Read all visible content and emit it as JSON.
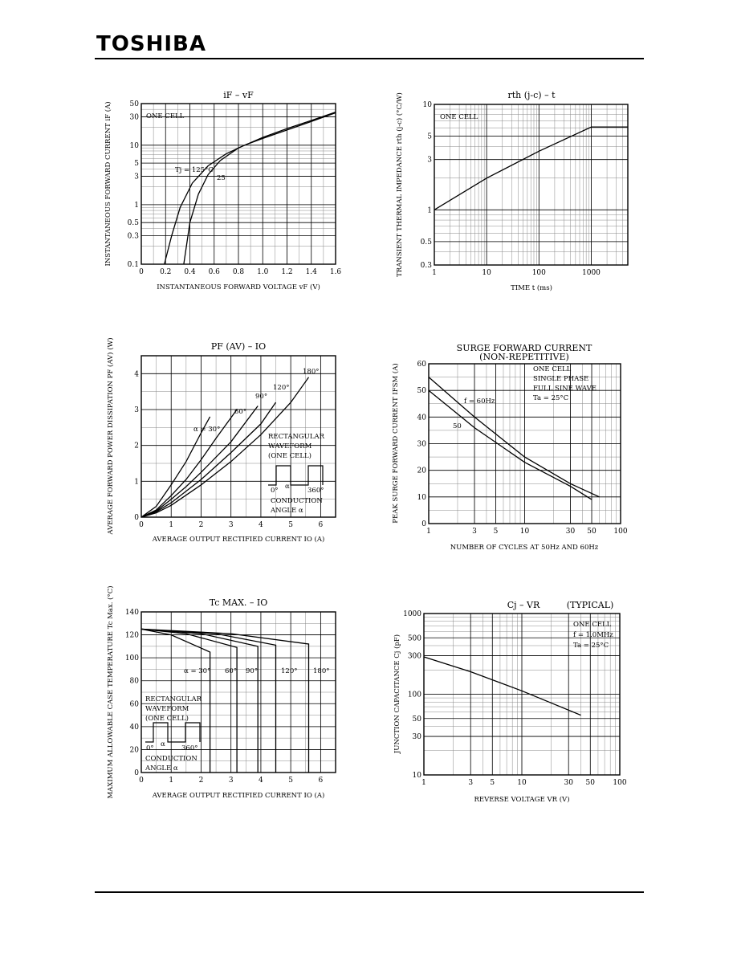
{
  "header": {
    "brand": "TOSHIBA"
  },
  "chart_data": [
    {
      "type": "line",
      "title": "iF – vF",
      "xlabel": "INSTANTANEOUS FORWARD VOLTAGE vF (V)",
      "ylabel": "INSTANTANEOUS FORWARD CURRENT iF (A)",
      "xlim": [
        0,
        1.6
      ],
      "ylim": [
        0.1,
        50
      ],
      "yscale": "log",
      "xticks": [
        0,
        0.2,
        0.4,
        0.6,
        0.8,
        1.0,
        1.2,
        1.4,
        1.6
      ],
      "xtick_labels": [
        "0",
        "0.2",
        "0.4",
        "0.6",
        "0.8",
        "1.0",
        "1.2",
        "1.4",
        "1.6"
      ],
      "yticks": [
        0.1,
        0.3,
        0.5,
        1,
        3,
        5,
        10,
        30,
        50
      ],
      "ytick_labels": [
        "0.1",
        "0.3",
        "0.5",
        "1",
        "3",
        "5",
        "10",
        "30",
        "50"
      ],
      "annotations": [
        "ONE CELL",
        "Tj = 125°C",
        "25"
      ],
      "series": [
        {
          "name": "Tj = 125°C",
          "x": [
            0.19,
            0.25,
            0.32,
            0.42,
            0.55,
            0.7,
            0.85,
            1.0,
            1.2,
            1.4,
            1.6
          ],
          "y": [
            0.1,
            0.3,
            0.9,
            2.3,
            4.5,
            7.2,
            10.0,
            13.0,
            18.0,
            25.0,
            35.0
          ]
        },
        {
          "name": "25",
          "x": [
            0.35,
            0.4,
            0.47,
            0.55,
            0.65,
            0.8,
            1.0,
            1.2,
            1.4,
            1.6
          ],
          "y": [
            0.1,
            0.5,
            1.5,
            3.2,
            5.5,
            9.0,
            13.5,
            19.0,
            26.0,
            36.0
          ]
        }
      ]
    },
    {
      "type": "line",
      "title": "rth (j-c) – t",
      "xlabel": "TIME t (ms)",
      "ylabel": "TRANSIENT THERMAL IMPEDANCE rth (j-c) (°C/W)",
      "xlim": [
        1,
        5000
      ],
      "ylim": [
        0.3,
        10
      ],
      "xscale": "log",
      "yscale": "log",
      "xticks": [
        1,
        10,
        100,
        1000
      ],
      "xtick_labels": [
        "1",
        "10",
        "100",
        "1000"
      ],
      "yticks": [
        0.3,
        0.5,
        1,
        3,
        5,
        10
      ],
      "ytick_labels": [
        "0.3",
        "0.5",
        "1",
        "3",
        "5",
        "10"
      ],
      "annotations": [
        "ONE CELL"
      ],
      "series": [
        {
          "name": "rth",
          "x": [
            1,
            10,
            100,
            1000,
            5000
          ],
          "y": [
            1.0,
            2.0,
            3.6,
            6.1,
            6.1
          ]
        }
      ]
    },
    {
      "type": "line",
      "title": "PF (AV) – IO",
      "xlabel": "AVERAGE OUTPUT RECTIFIED CURRENT IO (A)",
      "ylabel": "AVERAGE FORWARD POWER DISSIPATION PF (AV) (W)",
      "xlim": [
        0,
        6.5
      ],
      "ylim": [
        0,
        4.5
      ],
      "xticks": [
        0,
        1,
        2,
        3,
        4,
        5,
        6
      ],
      "xtick_labels": [
        "0",
        "1",
        "2",
        "3",
        "4",
        "5",
        "6"
      ],
      "yticks": [
        0,
        1,
        2,
        3,
        4
      ],
      "ytick_labels": [
        "0",
        "1",
        "2",
        "3",
        "4"
      ],
      "annotations": [
        "RECTANGULAR",
        "WAVEFORM",
        "(ONE CELL)",
        "0°",
        "α",
        "360°",
        "CONDUCTION",
        "ANGLE α"
      ],
      "series": [
        {
          "name": "α = 30°",
          "x": [
            0,
            0.5,
            1.0,
            1.5,
            2.0,
            2.3
          ],
          "y": [
            0,
            0.3,
            0.9,
            1.55,
            2.35,
            2.8
          ]
        },
        {
          "name": "60°",
          "x": [
            0,
            0.5,
            1.0,
            1.5,
            2.0,
            2.5,
            3.2
          ],
          "y": [
            0,
            0.2,
            0.6,
            1.05,
            1.6,
            2.2,
            3.0
          ]
        },
        {
          "name": "90°",
          "x": [
            0,
            0.5,
            1.0,
            1.5,
            2.0,
            3.0,
            3.9
          ],
          "y": [
            0,
            0.17,
            0.5,
            0.85,
            1.25,
            2.1,
            3.1
          ]
        },
        {
          "name": "120°",
          "x": [
            0,
            0.5,
            1.0,
            2.0,
            3.0,
            4.0,
            4.5
          ],
          "y": [
            0,
            0.15,
            0.4,
            1.05,
            1.8,
            2.6,
            3.2
          ]
        },
        {
          "name": "180°",
          "x": [
            0,
            0.5,
            1.0,
            2.0,
            3.0,
            4.0,
            5.0,
            5.6
          ],
          "y": [
            0,
            0.12,
            0.33,
            0.9,
            1.55,
            2.3,
            3.2,
            3.9
          ]
        }
      ]
    },
    {
      "type": "line",
      "title": "SURGE FORWARD CURRENT",
      "subtitle": "(NON-REPETITIVE)",
      "xlabel": "NUMBER OF CYCLES AT 50Hz AND 60Hz",
      "ylabel": "PEAK SURGE FORWARD CURRENT IFSM (A)",
      "xlim": [
        1,
        100
      ],
      "ylim": [
        0,
        60
      ],
      "xscale": "log",
      "xticks": [
        1,
        3,
        5,
        10,
        30,
        50,
        100
      ],
      "xtick_labels": [
        "1",
        "3",
        "5",
        "10",
        "30",
        "50",
        "100"
      ],
      "yticks": [
        0,
        10,
        20,
        30,
        40,
        50,
        60
      ],
      "ytick_labels": [
        "0",
        "10",
        "20",
        "30",
        "40",
        "50",
        "60"
      ],
      "annotations": [
        "ONE CELL",
        "SINGLE PHASE",
        "FULL SINE WAVE",
        "Ta = 25°C"
      ],
      "series": [
        {
          "name": "f = 60Hz",
          "x": [
            1,
            3,
            10,
            30,
            60
          ],
          "y": [
            55,
            40,
            25,
            15,
            10
          ]
        },
        {
          "name": "50",
          "x": [
            1,
            3,
            10,
            30,
            50
          ],
          "y": [
            50,
            36,
            23,
            14,
            9
          ]
        }
      ]
    },
    {
      "type": "line",
      "title": "Tc MAX. – IO",
      "xlabel": "AVERAGE OUTPUT RECTIFIED CURRENT IO (A)",
      "ylabel": "MAXIMUM ALLOWABLE CASE TEMPERATURE Tc Max. (°C)",
      "xlim": [
        0,
        6.5
      ],
      "ylim": [
        0,
        140
      ],
      "xticks": [
        0,
        1,
        2,
        3,
        4,
        5,
        6
      ],
      "xtick_labels": [
        "0",
        "1",
        "2",
        "3",
        "4",
        "5",
        "6"
      ],
      "yticks": [
        0,
        20,
        40,
        60,
        80,
        100,
        120,
        140
      ],
      "ytick_labels": [
        "0",
        "20",
        "40",
        "60",
        "80",
        "100",
        "120",
        "140"
      ],
      "annotations": [
        "RECTANGULAR",
        "WAVEFORM",
        "(ONE CELL)",
        "0°",
        "α",
        "360°",
        "CONDUCTION",
        "ANGLE α"
      ],
      "series": [
        {
          "name": "α = 30°",
          "x": [
            0,
            1.0,
            2.3,
            2.3
          ],
          "y": [
            125,
            120,
            105,
            0
          ]
        },
        {
          "name": "60°",
          "x": [
            0,
            1.5,
            3.2,
            3.2
          ],
          "y": [
            125,
            121,
            109,
            0
          ]
        },
        {
          "name": "90°",
          "x": [
            0,
            2.0,
            3.9,
            3.9
          ],
          "y": [
            125,
            121,
            110,
            0
          ]
        },
        {
          "name": "120°",
          "x": [
            0,
            2.5,
            4.5,
            4.5
          ],
          "y": [
            125,
            121,
            111,
            0
          ]
        },
        {
          "name": "180°",
          "x": [
            0,
            3.0,
            5.6,
            5.6
          ],
          "y": [
            125,
            121,
            112,
            0
          ]
        }
      ]
    },
    {
      "type": "line",
      "title": "Cj – VR",
      "subtitle": "(TYPICAL)",
      "xlabel": "REVERSE VOLTAGE VR (V)",
      "ylabel": "JUNCTION CAPACITANCE Cj (pF)",
      "xlim": [
        1,
        100
      ],
      "ylim": [
        10,
        1000
      ],
      "xscale": "log",
      "yscale": "log",
      "xticks": [
        1,
        3,
        5,
        10,
        30,
        50,
        100
      ],
      "xtick_labels": [
        "1",
        "3",
        "5",
        "10",
        "30",
        "50",
        "100"
      ],
      "yticks": [
        10,
        30,
        50,
        100,
        300,
        500,
        1000
      ],
      "ytick_labels": [
        "10",
        "30",
        "50",
        "100",
        "300",
        "500",
        "1000"
      ],
      "annotations": [
        "ONE CELL",
        "f = 1.0MHz",
        "Ta = 25°C"
      ],
      "series": [
        {
          "name": "Cj",
          "x": [
            1,
            3,
            10,
            40
          ],
          "y": [
            290,
            190,
            110,
            55
          ]
        }
      ]
    }
  ]
}
